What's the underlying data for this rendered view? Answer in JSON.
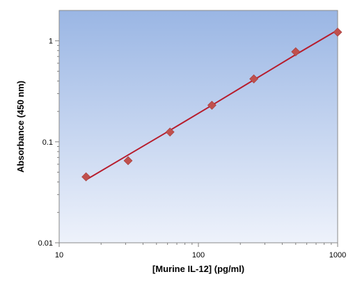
{
  "chart_data": {
    "type": "scatter",
    "title": "",
    "xlabel": "[Murine IL-12] (pg/ml)",
    "ylabel": "Absorbance (450 nm)",
    "x_scale": "log",
    "y_scale": "log",
    "xlim": [
      10,
      1000
    ],
    "ylim": [
      0.01,
      2
    ],
    "x_ticks": [
      10,
      100,
      1000
    ],
    "x_tick_labels": [
      "10",
      "100",
      "1000"
    ],
    "y_ticks": [
      0.01,
      0.1,
      1
    ],
    "y_tick_labels": [
      "0.01",
      "0.1",
      "1"
    ],
    "grid": false,
    "legend": "none",
    "series": [
      {
        "type": "scatter",
        "marker": "diamond",
        "x": [
          15.6,
          31.25,
          62.5,
          125,
          250,
          500,
          1000
        ],
        "y": [
          0.045,
          0.065,
          0.125,
          0.23,
          0.42,
          0.78,
          1.22
        ]
      },
      {
        "type": "line",
        "x": [
          15.6,
          31.25,
          62.5,
          125,
          250,
          500,
          1000
        ],
        "y": [
          0.042,
          0.074,
          0.13,
          0.23,
          0.41,
          0.73,
          1.28
        ]
      }
    ],
    "colors": {
      "marker": "#c0504d",
      "line": "#b71c2c",
      "plot_bg_top": "#9ab6e4",
      "plot_bg_bottom": "#eef2fb"
    }
  }
}
